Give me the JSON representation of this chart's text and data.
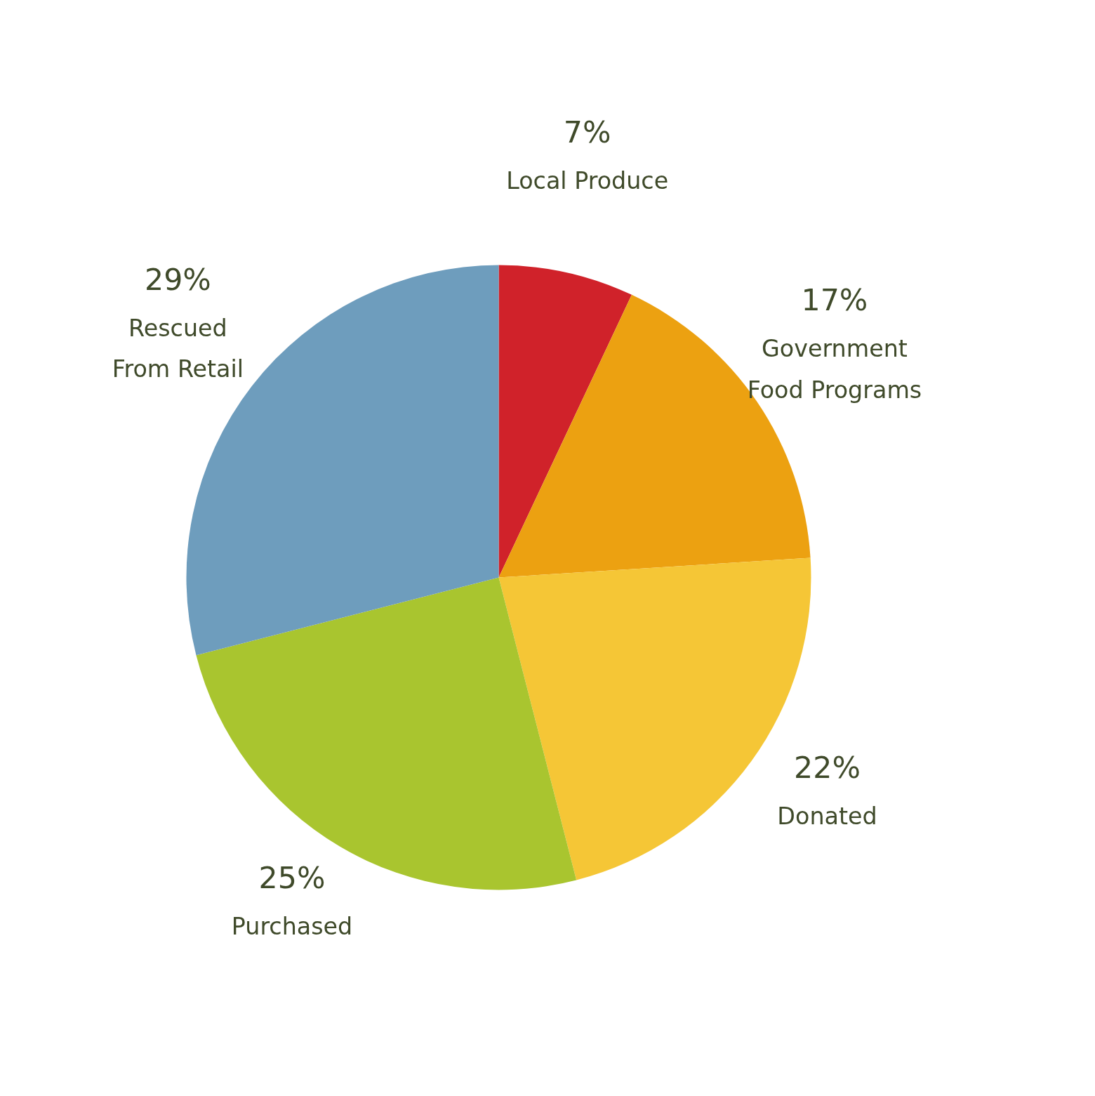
{
  "chart_data": {
    "type": "pie",
    "categories": [
      "Local Produce",
      "Government\nFood Programs",
      "Donated",
      "Purchased",
      "Rescued\nFrom Retail"
    ],
    "values": [
      7,
      17,
      22,
      25,
      29
    ],
    "value_labels": [
      "7%",
      "17%",
      "22%",
      "25%",
      "29%"
    ],
    "colors": [
      "#d0222a",
      "#eca111",
      "#f5c636",
      "#a9c52f",
      "#6e9dbd"
    ]
  }
}
